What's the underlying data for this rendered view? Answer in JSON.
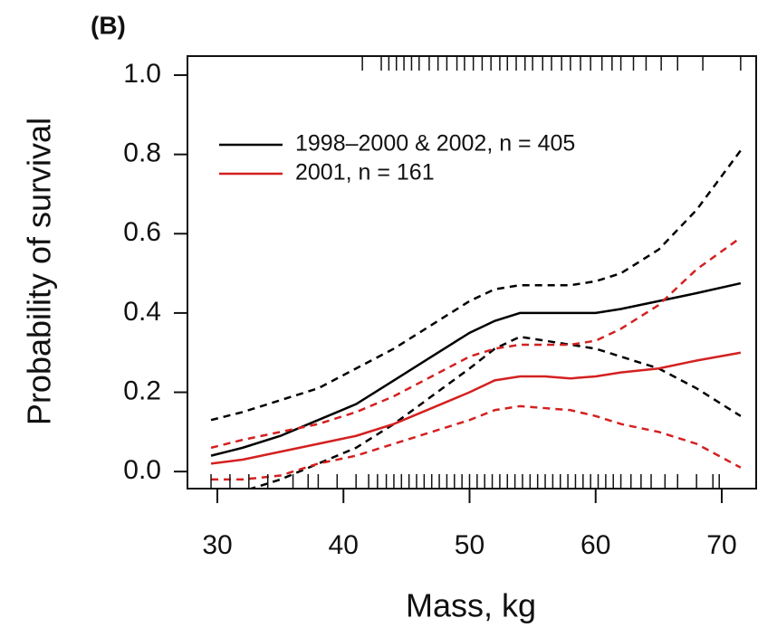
{
  "chart_data": {
    "type": "line",
    "title": "(B)",
    "xlabel": "Mass, kg",
    "ylabel": "Probability of survival",
    "x": [
      29.5,
      32,
      35,
      38,
      41,
      44,
      47,
      50,
      52,
      54,
      56,
      58,
      60,
      62,
      65,
      68,
      71.5
    ],
    "series": [
      {
        "name": "1998–2000 & 2002, n = 405",
        "color": "#000000",
        "values": [
          0.04,
          0.06,
          0.09,
          0.13,
          0.17,
          0.23,
          0.29,
          0.35,
          0.38,
          0.4,
          0.4,
          0.4,
          0.4,
          0.41,
          0.43,
          0.45,
          0.475
        ],
        "upper": [
          0.13,
          0.15,
          0.18,
          0.21,
          0.26,
          0.31,
          0.37,
          0.43,
          0.46,
          0.47,
          0.47,
          0.47,
          0.48,
          0.5,
          0.56,
          0.66,
          0.81
        ],
        "lower": [
          -0.06,
          -0.05,
          -0.02,
          0.02,
          0.06,
          0.12,
          0.19,
          0.26,
          0.31,
          0.34,
          0.33,
          0.32,
          0.31,
          0.29,
          0.26,
          0.21,
          0.14
        ]
      },
      {
        "name": "2001, n = 161",
        "color": "#d42020",
        "values": [
          0.02,
          0.03,
          0.05,
          0.07,
          0.09,
          0.12,
          0.16,
          0.2,
          0.23,
          0.24,
          0.24,
          0.235,
          0.24,
          0.25,
          0.26,
          0.28,
          0.3
        ],
        "upper": [
          0.06,
          0.08,
          0.1,
          0.12,
          0.15,
          0.19,
          0.24,
          0.29,
          0.31,
          0.32,
          0.32,
          0.32,
          0.33,
          0.36,
          0.42,
          0.51,
          0.59
        ],
        "lower": [
          -0.02,
          -0.02,
          -0.01,
          0.02,
          0.04,
          0.07,
          0.1,
          0.13,
          0.155,
          0.165,
          0.16,
          0.155,
          0.14,
          0.12,
          0.1,
          0.07,
          0.01
        ]
      }
    ],
    "rug_top": [
      41.5,
      43,
      43.6,
      44.2,
      44.8,
      45.4,
      46,
      46.8,
      47.5,
      48.2,
      49,
      49.6,
      50.3,
      51,
      51.7,
      52.4,
      53,
      53.7,
      54.4,
      55,
      55.8,
      56.5,
      57.3,
      58,
      58.8,
      59.6,
      60.5,
      61.3,
      62,
      63,
      64,
      65.2,
      66.5,
      68.5,
      71.5
    ],
    "rug_bottom": [
      29.5,
      31,
      32.5,
      34,
      36,
      37.2,
      38,
      39.5,
      41,
      42,
      42.7,
      43.4,
      44,
      44.6,
      45.2,
      45.8,
      46.4,
      47,
      47.6,
      48.2,
      48.8,
      49.4,
      50,
      50.6,
      51.2,
      51.8,
      52.4,
      53,
      53.6,
      54.2,
      54.8,
      55.4,
      56,
      56.6,
      57.2,
      57.8,
      58.4,
      59,
      59.6,
      60.2,
      60.8,
      61.4,
      62,
      62.8,
      63.6,
      64.4,
      65.5,
      66.5,
      68,
      69.3,
      69.8
    ],
    "xlim": [
      27.63,
      72.73
    ],
    "ylim": [
      -0.043,
      1.048
    ],
    "xticks": [
      30,
      40,
      50,
      60,
      70
    ],
    "yticks": [
      {
        "value": 0,
        "label": "0.0"
      },
      {
        "value": 0.2,
        "label": "0.2"
      },
      {
        "value": 0.4,
        "label": "0.4"
      },
      {
        "value": 0.6,
        "label": "0.6"
      },
      {
        "value": 0.8,
        "label": "0.8"
      },
      {
        "value": 1,
        "label": "1.0"
      }
    ]
  }
}
